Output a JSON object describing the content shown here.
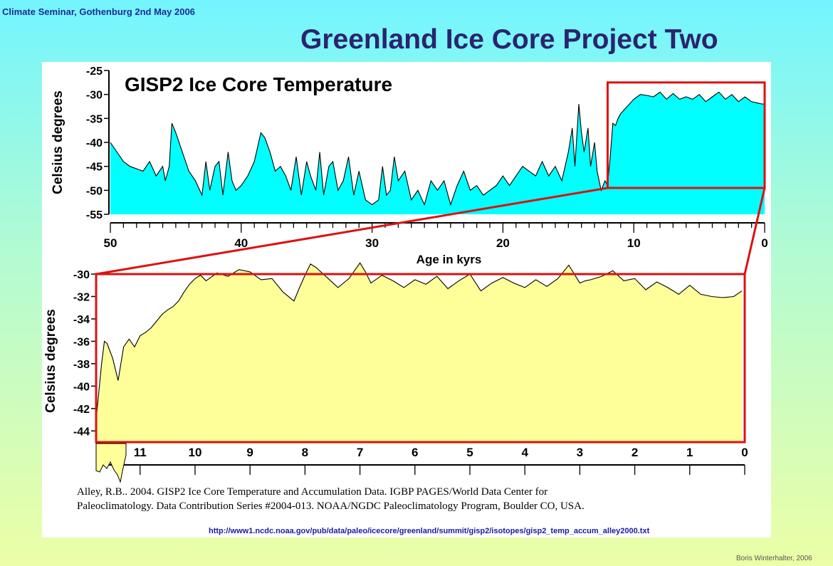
{
  "slide": {
    "header_note": "Climate Seminar, Gothenburg 2nd May 2006",
    "title": "Greenland Ice Core Project Two",
    "citation_lines": [
      "Alley, R.B..  2004. GISP2 Ice Core Temperature and Accumulation Data. IGBP PAGES/World Data Center for",
      "Paleoclimatology. Data Contribution Series #2004-013.  NOAA/NGDC Paleoclimatology Program, Boulder CO, USA."
    ],
    "source_url": "http://www1.ncdc.noaa.gov/pub/data/paleo/icecore/greenland/summit/gisp2/isotopes/gisp2_temp_accum_alley2000.txt",
    "credit": "Boris Winterhalter, 2006",
    "colors": {
      "top_fill": "#00ffff",
      "bottom_fill": "#ffff99",
      "highlight": "#dd1111",
      "title_color": "#2a2470",
      "header_color": "#1d2b9a"
    }
  },
  "chart_data": [
    {
      "type": "area",
      "title": "GISP2 Ice Core Temperature",
      "xlabel": "Age in kyrs",
      "ylabel": "Celsius degrees",
      "xlim": [
        50,
        0
      ],
      "ylim": [
        -55,
        -25
      ],
      "xticks": [
        50,
        40,
        30,
        20,
        10,
        0
      ],
      "yticks": [
        -25,
        -30,
        -35,
        -40,
        -45,
        -50,
        -55
      ],
      "highlight_box": {
        "x": [
          12.0,
          0
        ],
        "y": [
          -49.5,
          -27.5
        ]
      },
      "x": [
        50,
        49.5,
        49,
        48.5,
        48,
        47.5,
        47,
        46.5,
        46,
        45.8,
        45.5,
        45.3,
        45,
        44.5,
        44,
        43.5,
        43,
        42.7,
        42.4,
        42,
        41.7,
        41.4,
        41,
        40.7,
        40.4,
        40,
        39.5,
        39,
        38.5,
        38.2,
        37.8,
        37.4,
        37,
        36.6,
        36.2,
        35.8,
        35.4,
        35,
        34.7,
        34.3,
        34,
        33.7,
        33.3,
        33,
        32.6,
        32.2,
        31.8,
        31.4,
        31,
        30.5,
        30,
        29.5,
        29.2,
        28.9,
        28.6,
        28.3,
        28,
        27.5,
        27,
        26.5,
        26,
        25.5,
        25,
        24.5,
        24,
        23.5,
        23,
        22.5,
        22,
        21.5,
        21,
        20.5,
        20,
        19.5,
        19,
        18.5,
        18,
        17.5,
        17,
        16.5,
        16,
        15.5,
        15,
        14.7,
        14.5,
        14.2,
        14,
        13.8,
        13.5,
        13.3,
        13,
        12.8,
        12.5,
        12.2,
        12,
        11.8,
        11.6,
        11.4,
        11.2,
        11,
        10.5,
        10,
        9.5,
        9,
        8.5,
        8,
        7.5,
        7,
        6.5,
        6,
        5.5,
        5,
        4.5,
        4,
        3.5,
        3,
        2.5,
        2,
        1.5,
        1,
        0.5,
        0.2,
        0
      ],
      "values": [
        -40,
        -42,
        -44,
        -45,
        -45.5,
        -46,
        -44,
        -47,
        -45,
        -48,
        -45,
        -36,
        -38,
        -42,
        -46,
        -48,
        -51,
        -44,
        -50,
        -45,
        -44,
        -51,
        -42,
        -48,
        -50,
        -49,
        -47,
        -44,
        -38,
        -39,
        -42,
        -46,
        -45,
        -47,
        -50,
        -43,
        -51,
        -44,
        -47,
        -50,
        -42,
        -51,
        -45,
        -44,
        -50,
        -48,
        -43,
        -51,
        -46,
        -52,
        -53,
        -52,
        -45,
        -51,
        -50,
        -43,
        -48,
        -46,
        -52,
        -50,
        -53,
        -48,
        -50,
        -48,
        -53,
        -49,
        -46,
        -50,
        -49,
        -51,
        -50,
        -49,
        -47,
        -49,
        -47,
        -45,
        -46,
        -47,
        -44,
        -47,
        -45,
        -48,
        -42,
        -37,
        -45,
        -32,
        -38,
        -42,
        -37,
        -45,
        -40,
        -46,
        -50,
        -48,
        -49,
        -43,
        -36,
        -36.5,
        -35,
        -34,
        -32.5,
        -31,
        -30,
        -30.2,
        -30.5,
        -29.5,
        -31,
        -29.8,
        -31,
        -30.5,
        -31,
        -30,
        -31.5,
        -30.5,
        -29.5,
        -31,
        -30,
        -31.5,
        -30.5,
        -31.5,
        -31.8,
        -32,
        -32
      ]
    },
    {
      "type": "area",
      "title": "",
      "xlabel": "",
      "ylabel": "Celsius degrees",
      "xlim": [
        11.8,
        0
      ],
      "ylim": [
        -45,
        -30
      ],
      "xticks": [
        11,
        10,
        9,
        8,
        7,
        6,
        5,
        4,
        3,
        2,
        1,
        0
      ],
      "yticks": [
        -30,
        -32,
        -34,
        -36,
        -38,
        -40,
        -42,
        -44
      ],
      "x": [
        11.8,
        11.7,
        11.65,
        11.6,
        11.5,
        11.4,
        11.3,
        11.2,
        11.1,
        11.0,
        10.9,
        10.8,
        10.7,
        10.6,
        10.5,
        10.4,
        10.3,
        10.2,
        10.1,
        10.0,
        9.9,
        9.8,
        9.6,
        9.4,
        9.2,
        9.0,
        8.8,
        8.6,
        8.4,
        8.2,
        8.1,
        8.0,
        7.9,
        7.8,
        7.6,
        7.4,
        7.2,
        7.0,
        6.9,
        6.8,
        6.6,
        6.4,
        6.2,
        6.0,
        5.8,
        5.6,
        5.4,
        5.2,
        5.0,
        4.8,
        4.6,
        4.4,
        4.2,
        4.0,
        3.8,
        3.6,
        3.4,
        3.2,
        3.0,
        2.9,
        2.8,
        2.6,
        2.4,
        2.2,
        2.0,
        1.8,
        1.6,
        1.4,
        1.2,
        1.0,
        0.8,
        0.6,
        0.4,
        0.2,
        0.05
      ],
      "values": [
        -43,
        -38,
        -36,
        -36.2,
        -37.5,
        -39.5,
        -36.5,
        -35.8,
        -36.5,
        -35.5,
        -35.2,
        -34.8,
        -34.2,
        -33.6,
        -33.2,
        -32.9,
        -32.4,
        -31.6,
        -30.9,
        -30.4,
        -30.1,
        -30.6,
        -29.9,
        -30.2,
        -29.6,
        -29.8,
        -30.5,
        -30.4,
        -31.6,
        -32.4,
        -31.2,
        -30.1,
        -29.1,
        -29.4,
        -30.3,
        -31.2,
        -30.4,
        -29.0,
        -29.8,
        -30.8,
        -30.1,
        -30.6,
        -31.2,
        -30.5,
        -30.9,
        -30.2,
        -31.3,
        -30.6,
        -30.0,
        -31.5,
        -30.8,
        -30.3,
        -30.8,
        -31.2,
        -30.5,
        -31.1,
        -30.4,
        -29.2,
        -30.8,
        -30.6,
        -30.5,
        -30.2,
        -29.7,
        -30.6,
        -30.4,
        -31.4,
        -30.7,
        -31.2,
        -31.8,
        -31.0,
        -31.8,
        -32.0,
        -32.1,
        -32.0,
        -31.5
      ]
    }
  ]
}
